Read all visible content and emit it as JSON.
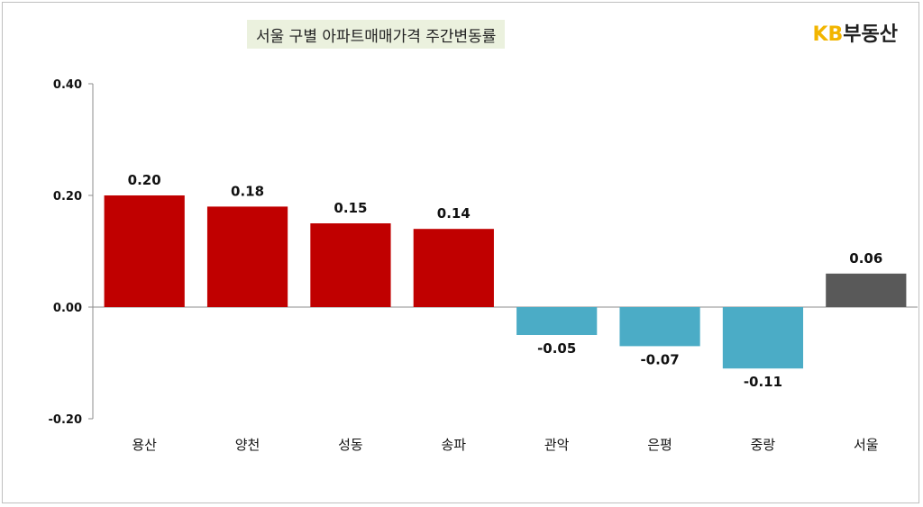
{
  "chart_data": {
    "type": "bar",
    "title": "서울 구별 아파트매매가격 주간변동률",
    "brand": {
      "prefix": "KB",
      "suffix": "부동산"
    },
    "categories": [
      "용산",
      "양천",
      "성동",
      "송파",
      "관악",
      "은평",
      "중랑",
      "서울"
    ],
    "values": [
      0.2,
      0.18,
      0.15,
      0.14,
      -0.05,
      -0.07,
      -0.11,
      0.06
    ],
    "value_labels": [
      "0.20",
      "0.18",
      "0.15",
      "0.14",
      "-0.05",
      "-0.07",
      "-0.11",
      "0.06"
    ],
    "colors": [
      "#c00000",
      "#c00000",
      "#c00000",
      "#c00000",
      "#4bacc6",
      "#4bacc6",
      "#4bacc6",
      "#595959"
    ],
    "yticks": [
      -0.2,
      0.0,
      0.2,
      0.4
    ],
    "ytick_labels": [
      "-0.20",
      "0.00",
      "0.20",
      "0.40"
    ],
    "ylim": [
      -0.2,
      0.4
    ],
    "grid": false,
    "legend": "none"
  }
}
